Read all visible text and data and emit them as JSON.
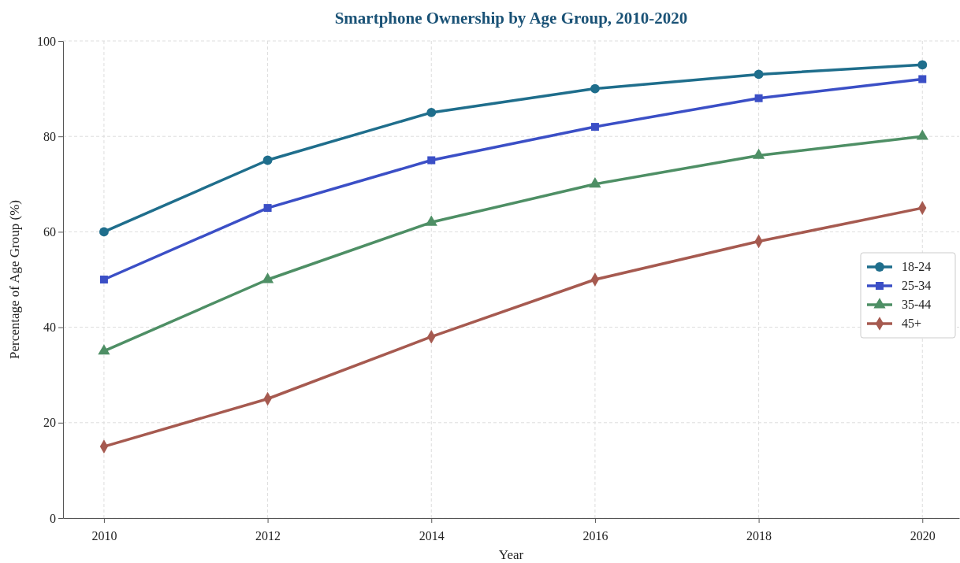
{
  "chart_data": {
    "type": "line",
    "title": "Smartphone Ownership by Age Group, 2010-2020",
    "xlabel": "Year",
    "ylabel": "Percentage of Age Group (%)",
    "x": [
      2010,
      2012,
      2014,
      2016,
      2018,
      2020
    ],
    "series": [
      {
        "name": "18-24",
        "color": "#1f6e8c",
        "marker": "circle",
        "values": [
          60,
          75,
          85,
          90,
          93,
          95
        ]
      },
      {
        "name": "25-34",
        "color": "#3b4fc6",
        "marker": "square",
        "values": [
          50,
          65,
          75,
          82,
          88,
          92
        ]
      },
      {
        "name": "35-44",
        "color": "#4e8f65",
        "marker": "triangle",
        "values": [
          35,
          50,
          62,
          70,
          76,
          80
        ]
      },
      {
        "name": "45+",
        "color": "#a65a50",
        "marker": "diamond",
        "values": [
          15,
          25,
          38,
          50,
          58,
          65
        ]
      }
    ],
    "xlim": [
      2009.5,
      2020.45
    ],
    "xticks": [
      2010,
      2012,
      2014,
      2016,
      2018,
      2020
    ],
    "ylim": [
      0,
      100
    ],
    "yticks": [
      0,
      20,
      40,
      60,
      80,
      100
    ],
    "grid": true,
    "legend": "right",
    "line_style": "solid"
  }
}
